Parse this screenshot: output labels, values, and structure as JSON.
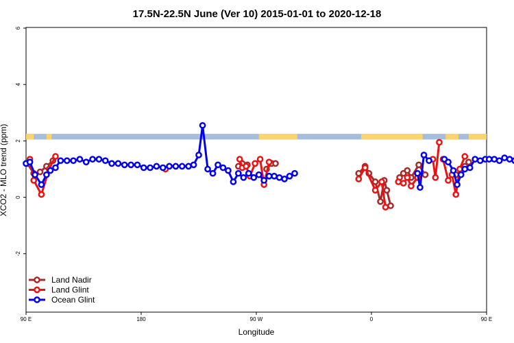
{
  "chart_data": {
    "type": "line",
    "title": "17.5N-22.5N June (Ver 10)   2015-01-01 to 2020-12-18",
    "xlabel": "Longitude",
    "ylabel": "XCO2 - MLO trend (ppm)",
    "xlim": [
      90,
      450
    ],
    "ylim": [
      -4,
      6
    ],
    "x_ticks": [
      {
        "value": 90,
        "label": "90 E"
      },
      {
        "value": 180,
        "label": "180"
      },
      {
        "value": 270,
        "label": "90 W"
      },
      {
        "value": 360,
        "label": "0"
      },
      {
        "value": 450,
        "label": "90 E"
      },
      {
        "value": 540,
        "label": "180"
      }
    ],
    "y_ticks": [
      -2,
      0,
      2,
      4,
      6
    ],
    "y_tick_labels": [
      "-2",
      "0",
      "2",
      "4",
      "6"
    ],
    "land_ocean_band": {
      "y_range": [
        2.05,
        2.25
      ],
      "ocean_color": "#a6bddb",
      "land_color": "#fbd46d",
      "land_segments": [
        [
          90,
          96
        ],
        [
          106,
          110
        ],
        [
          272,
          302
        ],
        [
          352,
          400
        ],
        [
          418,
          428
        ],
        [
          436,
          454
        ]
      ]
    },
    "legend_position": "bottom-left",
    "series": [
      {
        "name": "Land Nadir",
        "color": "#a52a2a",
        "segments": [
          [
            [
              91,
              1.2
            ],
            [
              96,
              0.85
            ],
            [
              101,
              0.9
            ],
            [
              106,
              1.1
            ],
            [
              111,
              1.3
            ]
          ],
          [
            [
              256,
              1.1
            ],
            [
              259,
              1.2
            ],
            [
              263,
              1.15
            ]
          ],
          [
            [
              278,
              1.0
            ],
            [
              282,
              1.2
            ],
            [
              285,
              1.2
            ]
          ],
          [
            [
              350,
              0.85
            ],
            [
              355,
              1.1
            ],
            [
              358,
              0.85
            ],
            [
              363,
              0.55
            ],
            [
              367,
              -0.15
            ],
            [
              370,
              0.6
            ],
            [
              372,
              0.25
            ],
            [
              375,
              -0.3
            ]
          ],
          [
            [
              382,
              0.7
            ],
            [
              385,
              0.85
            ],
            [
              388,
              0.95
            ],
            [
              391,
              0.7
            ],
            [
              397,
              1.15
            ],
            [
              402,
              0.8
            ]
          ],
          [
            [
              426,
              0.8
            ],
            [
              430,
              0.9
            ],
            [
              433,
              1.1
            ],
            [
              436,
              1.25
            ]
          ]
        ]
      },
      {
        "name": "Land Glint",
        "color": "#ee1111",
        "segments": [
          [
            [
              93,
              1.35
            ],
            [
              96,
              0.6
            ],
            [
              102,
              0.1
            ],
            [
              108,
              1.0
            ],
            [
              113,
              1.45
            ]
          ],
          [
            [
              199,
              1.0
            ]
          ],
          [
            [
              257,
              1.35
            ],
            [
              259,
              1.05
            ],
            [
              262,
              1.1
            ],
            [
              265,
              0.75
            ],
            [
              269,
              1.2
            ],
            [
              273,
              1.35
            ],
            [
              276,
              0.45
            ],
            [
              280,
              1.25
            ]
          ],
          [
            [
              350,
              0.65
            ],
            [
              355,
              1.05
            ],
            [
              363,
              0.25
            ],
            [
              368,
              0.55
            ],
            [
              371,
              -0.35
            ]
          ],
          [
            [
              381,
              0.55
            ],
            [
              385,
              0.5
            ],
            [
              388,
              0.7
            ],
            [
              391,
              0.4
            ],
            [
              396,
              0.7
            ]
          ],
          [
            [
              408,
              1.35
            ],
            [
              410,
              0.7
            ],
            [
              413,
              1.95
            ]
          ],
          [
            [
              416,
              1.35
            ],
            [
              420,
              0.6
            ],
            [
              423,
              0.8
            ],
            [
              426,
              0.1
            ],
            [
              429,
              1.0
            ],
            [
              433,
              1.45
            ]
          ]
        ]
      },
      {
        "name": "Ocean Glint",
        "color": "#0000ee",
        "segments": [
          [
            [
              90,
              1.2
            ],
            [
              93,
              1.25
            ],
            [
              97,
              0.8
            ],
            [
              102,
              0.45
            ],
            [
              106,
              0.8
            ],
            [
              109,
              0.95
            ],
            [
              113,
              1.05
            ],
            [
              117,
              1.3
            ],
            [
              122,
              1.3
            ],
            [
              127,
              1.3
            ],
            [
              132,
              1.35
            ],
            [
              137,
              1.25
            ],
            [
              142,
              1.35
            ],
            [
              147,
              1.35
            ],
            [
              152,
              1.3
            ],
            [
              157,
              1.2
            ],
            [
              162,
              1.2
            ],
            [
              167,
              1.15
            ],
            [
              172,
              1.15
            ],
            [
              177,
              1.15
            ],
            [
              182,
              1.05
            ],
            [
              187,
              1.05
            ],
            [
              192,
              1.1
            ],
            [
              197,
              1.05
            ],
            [
              202,
              1.1
            ],
            [
              207,
              1.1
            ],
            [
              212,
              1.1
            ],
            [
              217,
              1.1
            ],
            [
              221,
              1.15
            ],
            [
              225,
              1.5
            ],
            [
              228,
              2.55
            ],
            [
              232,
              1.0
            ],
            [
              236,
              0.85
            ],
            [
              240,
              1.15
            ],
            [
              244,
              1.05
            ],
            [
              248,
              0.95
            ],
            [
              252,
              0.55
            ],
            [
              256,
              0.85
            ],
            [
              260,
              0.7
            ],
            [
              264,
              0.85
            ],
            [
              268,
              0.7
            ],
            [
              272,
              0.8
            ],
            [
              276,
              0.6
            ],
            [
              280,
              0.75
            ],
            [
              284,
              0.75
            ],
            [
              288,
              0.7
            ],
            [
              292,
              0.65
            ],
            [
              296,
              0.75
            ],
            [
              300,
              0.85
            ]
          ],
          [
            [
              396,
              0.85
            ],
            [
              398,
              0.35
            ],
            [
              401,
              1.5
            ],
            [
              405,
              1.3
            ]
          ],
          [
            [
              417,
              1.35
            ],
            [
              420,
              1.25
            ],
            [
              424,
              0.95
            ],
            [
              427,
              0.45
            ],
            [
              430,
              0.8
            ],
            [
              433,
              1.0
            ],
            [
              437,
              1.05
            ],
            [
              441,
              1.35
            ],
            [
              445,
              1.3
            ],
            [
              449,
              1.35
            ],
            [
              452,
              1.35
            ],
            [
              456,
              1.35
            ],
            [
              460,
              1.3
            ],
            [
              464,
              1.4
            ],
            [
              468,
              1.35
            ],
            [
              472,
              1.3
            ],
            [
              476,
              1.3
            ],
            [
              480,
              1.2
            ]
          ]
        ]
      }
    ]
  }
}
